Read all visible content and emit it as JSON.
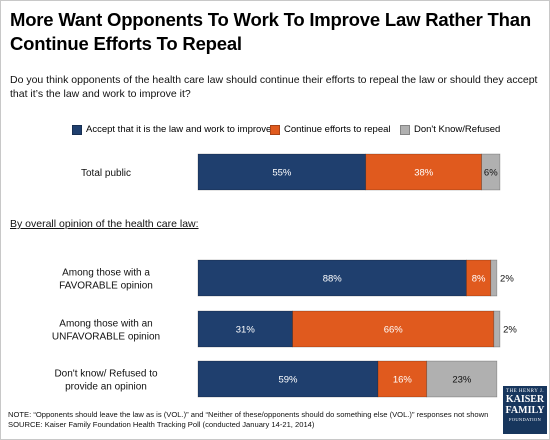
{
  "title": "More Want Opponents To Work To Improve Law Rather Than Continue Efforts To Repeal",
  "question": "Do you think opponents of the health care law should continue their efforts to repeal the law or should they accept that it’s the law and work to improve it?",
  "subheading": "By overall opinion of the health care law:",
  "colors": {
    "improve": "#1f3f6e",
    "repeal": "#e05a1e",
    "dontknow": "#b0b0b0"
  },
  "note": "NOTE: “Opponents should leave the law as is (VOL.)” and “Neither of these/opponents should do something else (VOL.)” responses not shown",
  "source": "SOURCE: Kaiser Family Foundation Health Tracking Poll (conducted January 14-21, 2014)",
  "logo": {
    "line1": "THE HENRY J.",
    "line2a": "KAISER",
    "line2b": "FAMILY",
    "line3": "FOUNDATION"
  },
  "chart_data": {
    "type": "bar",
    "orientation": "horizontal",
    "stacked": true,
    "legend_position": "top",
    "xlim": [
      0,
      100
    ],
    "series": [
      {
        "name": "Accept that it is the law and work to improve it",
        "color": "#1f3f6e"
      },
      {
        "name": "Continue efforts to repeal",
        "color": "#e05a1e"
      },
      {
        "name": "Don't Know/Refused",
        "color": "#b0b0b0"
      }
    ],
    "rows": [
      {
        "label_lines": [
          "Total public"
        ],
        "values": [
          55,
          38,
          6
        ],
        "labels": [
          "55%",
          "38%",
          "6%"
        ],
        "outside": [
          false,
          false,
          false
        ]
      },
      {
        "label_lines": [
          "Among those with a",
          "FAVORABLE opinion"
        ],
        "values": [
          88,
          8,
          2
        ],
        "labels": [
          "88%",
          "8%",
          "2%"
        ],
        "outside": [
          false,
          false,
          true
        ]
      },
      {
        "label_lines": [
          "Among those with an",
          "UNFAVORABLE opinion"
        ],
        "values": [
          31,
          66,
          2
        ],
        "labels": [
          "31%",
          "66%",
          "2%"
        ],
        "outside": [
          false,
          false,
          true
        ]
      },
      {
        "label_lines": [
          "Don't know/ Refused to",
          "provide an opinion"
        ],
        "values": [
          59,
          16,
          23
        ],
        "labels": [
          "59%",
          "16%",
          "23%"
        ],
        "outside": [
          false,
          false,
          false
        ]
      }
    ]
  }
}
